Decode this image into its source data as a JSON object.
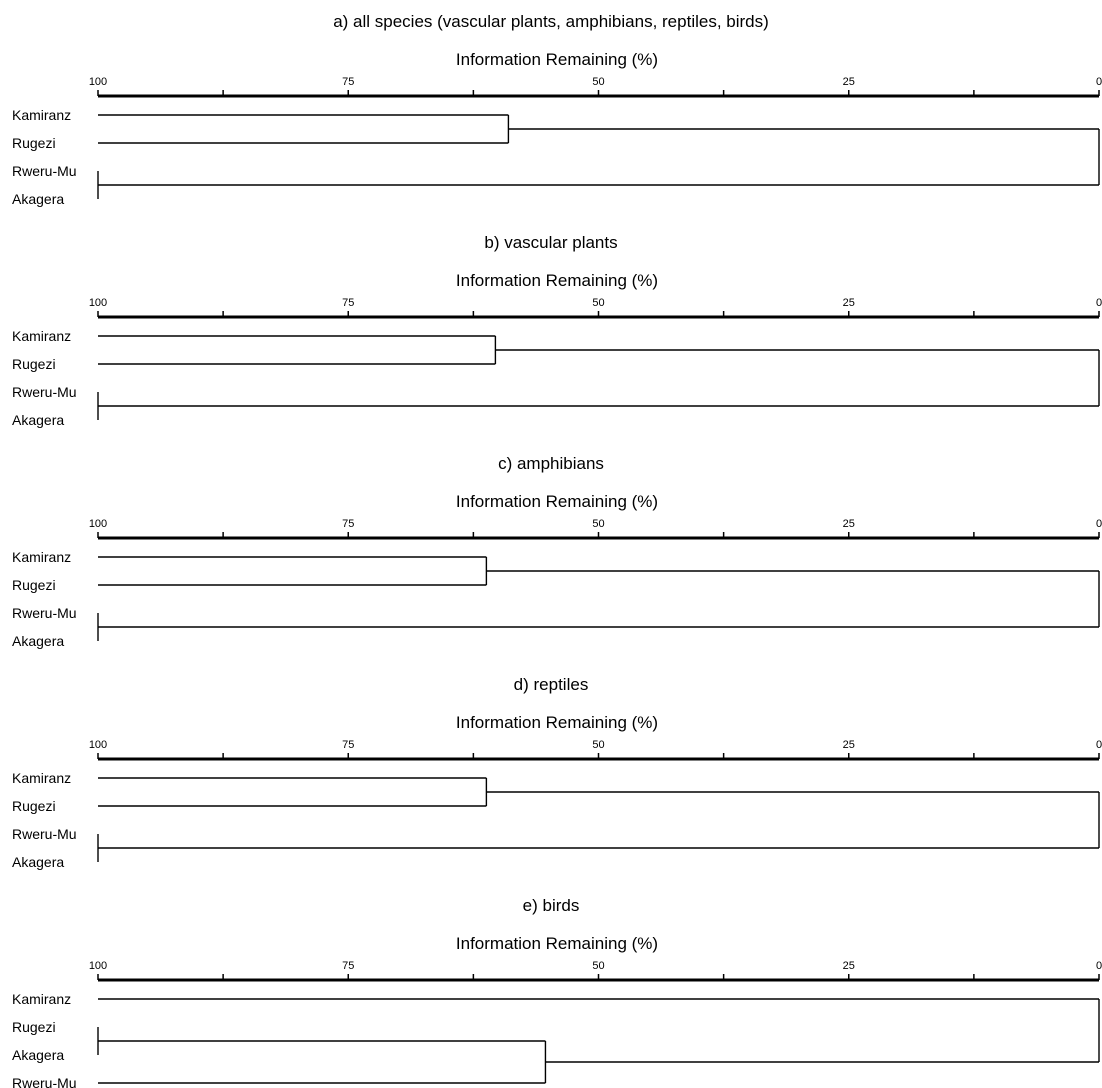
{
  "chart_data": [
    {
      "type": "dendrogram",
      "title": "a) all species (vascular plants, amphibians, reptiles, birds)",
      "xlabel": "Information Remaining (%)",
      "xlim": [
        100,
        0
      ],
      "tick_labels": [
        "100",
        "75",
        "50",
        "25",
        "0"
      ],
      "leaves": [
        "Kamiranz",
        "Rugezi",
        "Rweru-Mu",
        "Akagera"
      ],
      "merges": [
        {
          "left": 0,
          "right": 1,
          "height": 59
        },
        {
          "left": 2,
          "right": 3,
          "height": 100
        },
        {
          "left": 4,
          "right": 5,
          "height": 0
        }
      ]
    },
    {
      "type": "dendrogram",
      "title": "b) vascular plants",
      "xlabel": "Information Remaining (%)",
      "xlim": [
        100,
        0
      ],
      "tick_labels": [
        "100",
        "75",
        "50",
        "25",
        "0"
      ],
      "leaves": [
        "Kamiranz",
        "Rugezi",
        "Rweru-Mu",
        "Akagera"
      ],
      "merges": [
        {
          "left": 0,
          "right": 1,
          "height": 60.3
        },
        {
          "left": 2,
          "right": 3,
          "height": 100
        },
        {
          "left": 4,
          "right": 5,
          "height": 0
        }
      ]
    },
    {
      "type": "dendrogram",
      "title": "c) amphibians",
      "xlabel": "Information Remaining (%)",
      "xlim": [
        100,
        0
      ],
      "tick_labels": [
        "100",
        "75",
        "50",
        "25",
        "0"
      ],
      "leaves": [
        "Kamiranz",
        "Rugezi",
        "Rweru-Mu",
        "Akagera"
      ],
      "merges": [
        {
          "left": 0,
          "right": 1,
          "height": 61.2
        },
        {
          "left": 2,
          "right": 3,
          "height": 100
        },
        {
          "left": 4,
          "right": 5,
          "height": 0
        }
      ]
    },
    {
      "type": "dendrogram",
      "title": "d) reptiles",
      "xlabel": "Information Remaining (%)",
      "xlim": [
        100,
        0
      ],
      "tick_labels": [
        "100",
        "75",
        "50",
        "25",
        "0"
      ],
      "leaves": [
        "Kamiranz",
        "Rugezi",
        "Rweru-Mu",
        "Akagera"
      ],
      "merges": [
        {
          "left": 0,
          "right": 1,
          "height": 61.2
        },
        {
          "left": 2,
          "right": 3,
          "height": 100
        },
        {
          "left": 4,
          "right": 5,
          "height": 0
        }
      ]
    },
    {
      "type": "dendrogram",
      "title": "e) birds",
      "xlabel": "Information Remaining (%)",
      "xlim": [
        100,
        0
      ],
      "tick_labels": [
        "100",
        "75",
        "50",
        "25",
        "0"
      ],
      "leaves": [
        "Kamiranz",
        "Rugezi",
        "Akagera",
        "Rweru-Mu"
      ],
      "merges": [
        {
          "left": 1,
          "right": 2,
          "height": 100
        },
        {
          "left": 4,
          "right": 3,
          "height": 55.3
        },
        {
          "left": 0,
          "right": 5,
          "height": 0
        }
      ]
    }
  ]
}
